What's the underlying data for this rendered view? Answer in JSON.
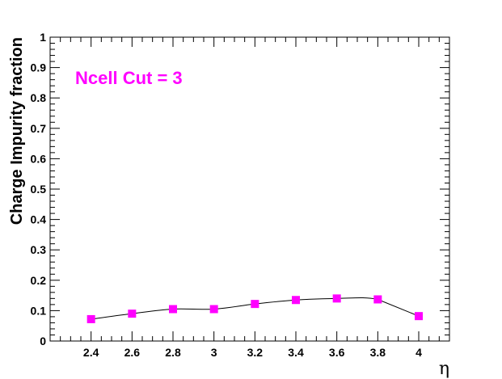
{
  "chart_data": {
    "type": "line",
    "title": "",
    "annotation": "Ncell Cut = 3",
    "xlabel": "η",
    "ylabel": "Charge Impurity fraction",
    "xlim": [
      2.2,
      4.15
    ],
    "ylim": [
      0,
      1
    ],
    "x_ticks": [
      "2.4",
      "2.6",
      "2.8",
      "3",
      "3.2",
      "3.4",
      "3.6",
      "3.8",
      "4"
    ],
    "y_ticks": [
      "0",
      "0.1",
      "0.2",
      "0.3",
      "0.4",
      "0.5",
      "0.6",
      "0.7",
      "0.8",
      "0.9",
      "1"
    ],
    "grid": false,
    "series": [
      {
        "x": [
          2.4,
          2.6,
          2.8,
          3.0,
          3.2,
          3.4,
          3.6,
          3.8,
          4.0
        ],
        "y": [
          0.072,
          0.09,
          0.105,
          0.105,
          0.122,
          0.135,
          0.14,
          0.137,
          0.082
        ],
        "marker": "square",
        "color": "#ff00ff",
        "line_color": "#000000"
      }
    ]
  }
}
